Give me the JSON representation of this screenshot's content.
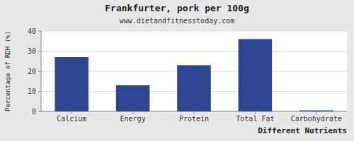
{
  "chart_data": {
    "type": "bar",
    "title": "Frankfurter, pork per 100g",
    "subtitle": "www.dietandfitnesstoday.com",
    "xlabel": "Different Nutrients",
    "ylabel": "Percentage of RDH (%)",
    "categories": [
      "Calcium",
      "Energy",
      "Protein",
      "Total Fat",
      "Carbohydrate"
    ],
    "values": [
      27,
      13,
      23,
      36,
      0.5
    ],
    "color": "#2b4590",
    "ylim": [
      0,
      40
    ],
    "yticks": [
      0,
      10,
      20,
      30,
      40
    ],
    "grid": true
  }
}
